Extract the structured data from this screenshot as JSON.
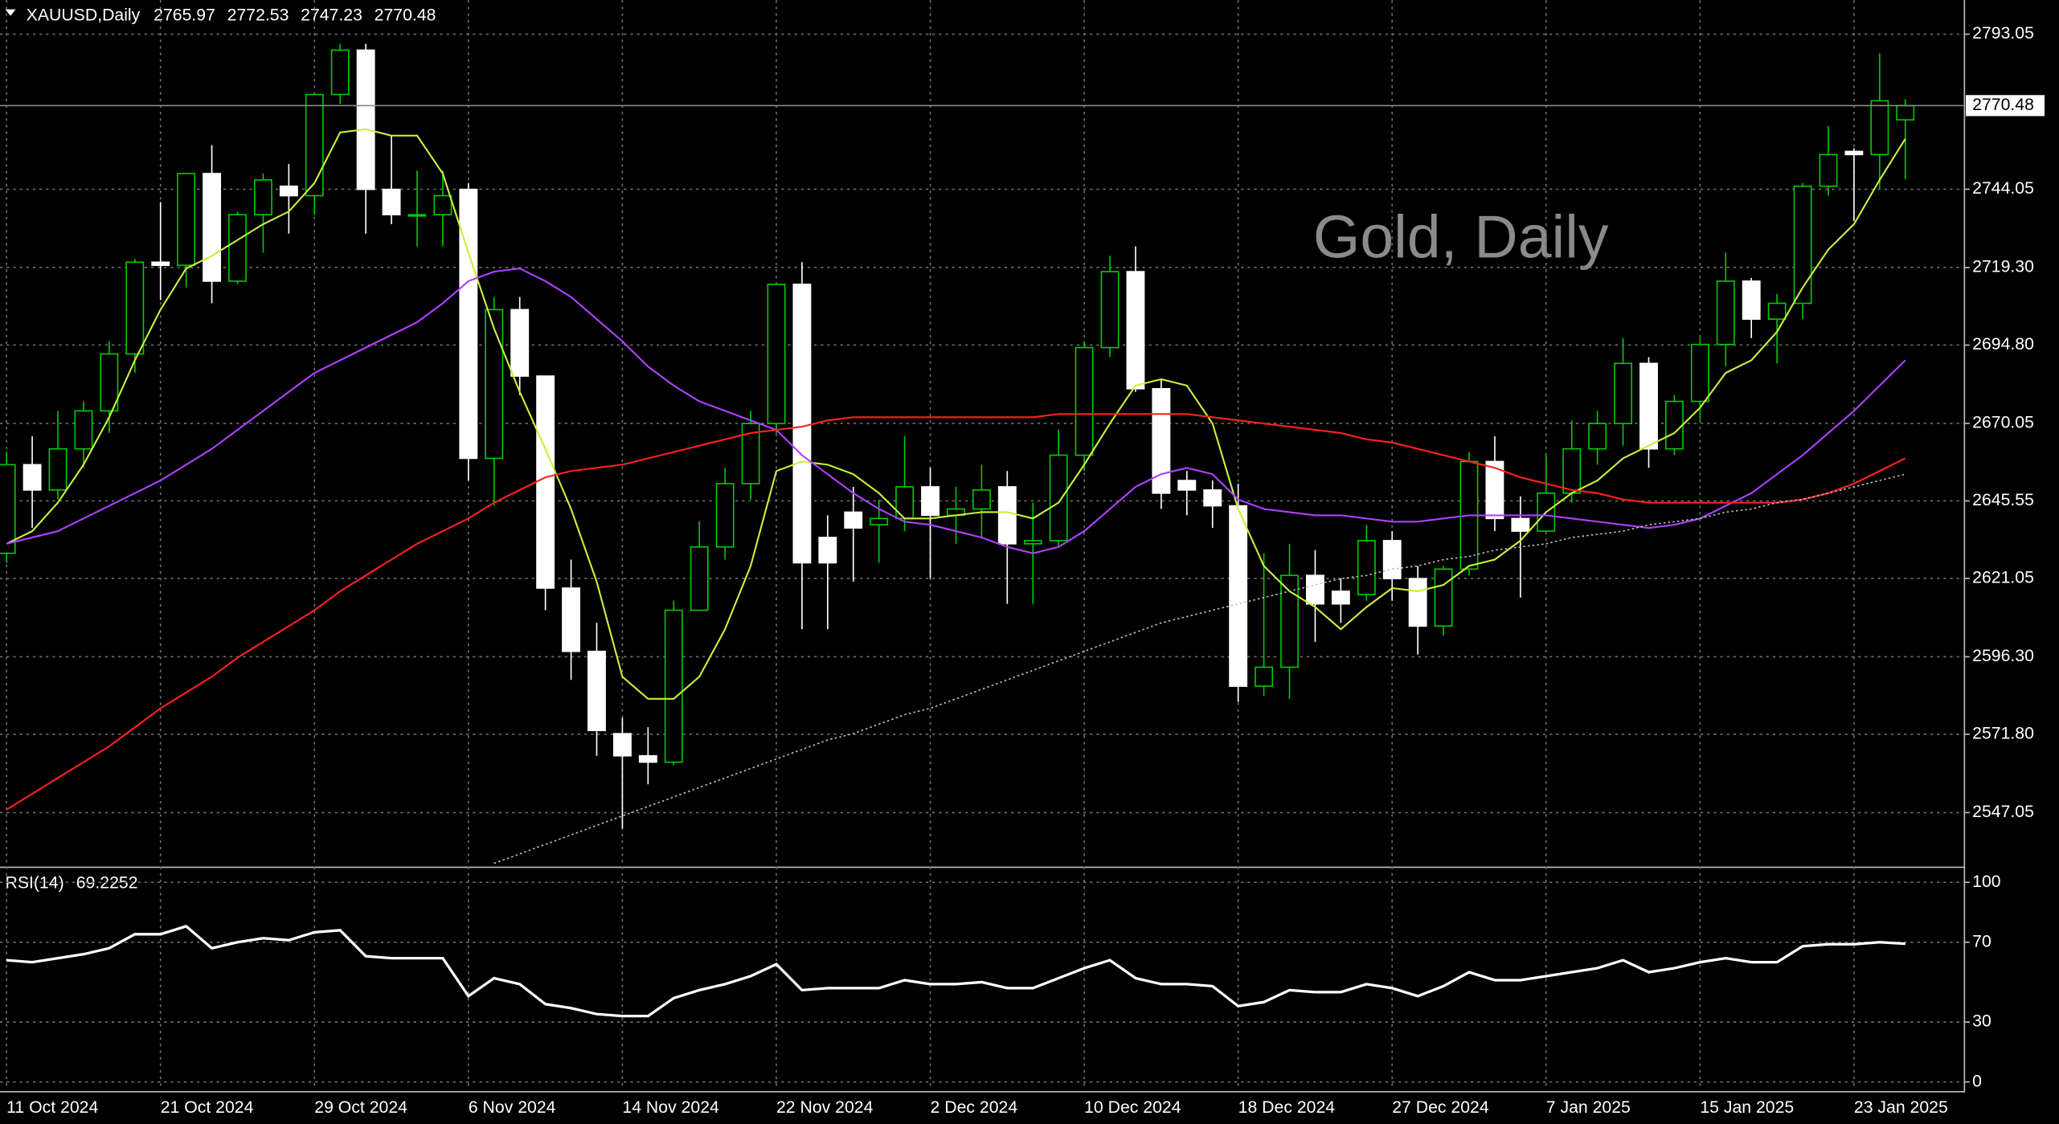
{
  "chart_data": [
    {
      "type": "candlestick",
      "title": "XAUUSD,Daily",
      "watermark": "Gold, Daily",
      "categories": [
        "11 Oct 2024",
        null,
        null,
        null,
        null,
        null,
        "21 Oct 2024",
        null,
        null,
        null,
        null,
        null,
        "29 Oct 2024",
        null,
        null,
        null,
        null,
        null,
        "6 Nov 2024",
        null,
        null,
        null,
        null,
        null,
        "14 Nov 2024",
        null,
        null,
        null,
        null,
        null,
        "22 Nov 2024",
        null,
        null,
        null,
        null,
        null,
        "2 Dec 2024",
        null,
        null,
        null,
        null,
        null,
        "10 Dec 2024",
        null,
        null,
        null,
        null,
        null,
        "18 Dec 2024",
        null,
        null,
        null,
        null,
        null,
        "27 Dec 2024",
        null,
        null,
        null,
        null,
        null,
        "7 Jan 2025",
        null,
        null,
        null,
        null,
        null,
        "15 Jan 2025",
        null,
        null,
        null,
        null,
        null,
        "23 Jan 2025",
        null,
        null
      ],
      "open": [
        2629,
        2657,
        2649,
        2662,
        2674,
        2692,
        2721,
        2720,
        2749,
        2715,
        2736,
        2745,
        2742,
        2774,
        2788,
        2744,
        2736,
        2736,
        2744,
        2659,
        2706,
        2685,
        2618,
        2598,
        2572,
        2565,
        2563,
        2611,
        2631,
        2651,
        2670,
        2714,
        2634,
        2642,
        2638,
        2640,
        2650,
        2641,
        2643,
        2650,
        2632,
        2633,
        2660,
        2694,
        2718,
        2681,
        2652,
        2649,
        2644,
        2587,
        2593,
        2622,
        2617,
        2616,
        2633,
        2621,
        2606,
        2624,
        2658,
        2640,
        2636,
        2648,
        2662,
        2670,
        2689,
        2662,
        2677,
        2695,
        2715,
        2703,
        2708,
        2745,
        2756,
        2755,
        2765.97
      ],
      "high": [
        2661,
        2666,
        2674,
        2677,
        2696,
        2722,
        2740,
        2749,
        2758,
        2737,
        2749,
        2752,
        2774,
        2790,
        2790,
        2761,
        2750,
        2750,
        2746,
        2710,
        2710,
        2685,
        2627,
        2607,
        2577,
        2574,
        2614,
        2639,
        2656,
        2674,
        2714,
        2721,
        2641,
        2650,
        2646,
        2666,
        2656,
        2650,
        2657,
        2655,
        2645,
        2668,
        2696,
        2723,
        2726,
        2684,
        2655,
        2652,
        2651,
        2629,
        2632,
        2630,
        2621,
        2638,
        2636,
        2625,
        2625,
        2661,
        2666,
        2647,
        2660,
        2671,
        2674,
        2697,
        2691,
        2679,
        2697,
        2724,
        2716,
        2711,
        2746,
        2764,
        2757,
        2787,
        2772.53
      ],
      "low": [
        2626,
        2637,
        2646,
        2656,
        2667,
        2686,
        2709,
        2713,
        2708,
        2714,
        2724,
        2730,
        2736,
        2771,
        2730,
        2733,
        2726,
        2726,
        2652,
        2644,
        2679,
        2611,
        2589,
        2565,
        2542,
        2556,
        2562,
        2611,
        2627,
        2646,
        2667,
        2605,
        2605,
        2620,
        2626,
        2636,
        2621,
        2632,
        2634,
        2613,
        2613,
        2631,
        2655,
        2691,
        2680,
        2643,
        2641,
        2637,
        2582,
        2584,
        2583,
        2601,
        2607,
        2614,
        2614,
        2597,
        2603,
        2622,
        2636,
        2615,
        2636,
        2645,
        2657,
        2663,
        2656,
        2660,
        2671,
        2688,
        2697,
        2689,
        2703,
        2742,
        2734,
        2744,
        2747.23
      ],
      "close": [
        2657,
        2649,
        2662,
        2674,
        2692,
        2721,
        2720,
        2749,
        2715,
        2736,
        2747,
        2742,
        2774,
        2788,
        2744,
        2736,
        2736,
        2742,
        2659,
        2706,
        2685,
        2618,
        2598,
        2573,
        2565,
        2563,
        2611,
        2631,
        2651,
        2670,
        2714,
        2626,
        2626,
        2637,
        2640,
        2650,
        2641,
        2643,
        2649,
        2632,
        2633,
        2660,
        2694,
        2718,
        2681,
        2648,
        2649,
        2644,
        2587,
        2593,
        2622,
        2613,
        2613,
        2633,
        2621,
        2606,
        2624,
        2658,
        2640,
        2636,
        2648,
        2662,
        2670,
        2689,
        2662,
        2677,
        2695,
        2715,
        2703,
        2708,
        2745,
        2755,
        2755,
        2772,
        2770.48
      ],
      "bull_color": "#00c800",
      "bear_color": "#ffffff",
      "series": [
        {
          "color": "#c8f03c",
          "style": "solid",
          "values": [
            2632,
            2636,
            2645,
            2657,
            2672,
            2690,
            2706,
            2719,
            2723,
            2728,
            2733,
            2737,
            2746,
            2762,
            2763,
            2761,
            2761,
            2749,
            2724,
            2700,
            2680,
            2662,
            2643,
            2620,
            2590,
            2583,
            2583,
            2590,
            2605,
            2625,
            2655,
            2658,
            2657,
            2654,
            2648,
            2640,
            2640,
            2641,
            2642,
            2642,
            2640,
            2645,
            2657,
            2670,
            2682,
            2684,
            2682,
            2670,
            2643,
            2625,
            2617,
            2612,
            2605,
            2612,
            2618,
            2617,
            2619,
            2625,
            2627,
            2633,
            2642,
            2648,
            2652,
            2659,
            2663,
            2667,
            2675,
            2686,
            2690,
            2699,
            2713,
            2725,
            2733,
            2747,
            2760
          ]
        },
        {
          "color": "#b040ff",
          "style": "solid",
          "values": [
            2632,
            2634,
            2636,
            2640,
            2644,
            2648,
            2652,
            2657,
            2662,
            2668,
            2674,
            2680,
            2686,
            2690,
            2694,
            2698,
            2702,
            2708,
            2715,
            2718,
            2719,
            2715,
            2710,
            2703,
            2696,
            2688,
            2682,
            2677,
            2674,
            2671,
            2668,
            2660,
            2654,
            2648,
            2643,
            2639,
            2638,
            2636,
            2634,
            2631,
            2629,
            2631,
            2636,
            2643,
            2650,
            2654,
            2656,
            2654,
            2646,
            2643,
            2642,
            2641,
            2641,
            2640,
            2639,
            2639,
            2640,
            2641,
            2641,
            2641,
            2641,
            2640,
            2639,
            2638,
            2637,
            2638,
            2640,
            2644,
            2648,
            2654,
            2660,
            2667,
            2674,
            2682,
            2690
          ]
        },
        {
          "color": "#ff2020",
          "style": "solid",
          "values": [
            2548,
            2553,
            2558,
            2563,
            2568,
            2574,
            2580,
            2585,
            2590,
            2596,
            2601,
            2606,
            2611,
            2617,
            2622,
            2627,
            2632,
            2636,
            2640,
            2645,
            2649,
            2653,
            2655,
            2656,
            2657,
            2659,
            2661,
            2663,
            2665,
            2667,
            2668,
            2669,
            2671,
            2672,
            2672,
            2672,
            2672,
            2672,
            2672,
            2672,
            2672,
            2673,
            2673,
            2673,
            2673,
            2673,
            2673,
            2672,
            2671,
            2670,
            2669,
            2668,
            2667,
            2665,
            2664,
            2662,
            2660,
            2658,
            2656,
            2653,
            2651,
            2649,
            2648,
            2646,
            2645,
            2645,
            2645,
            2645,
            2645,
            2645,
            2646,
            2648,
            2651,
            2655,
            2659
          ]
        },
        {
          "color": "#c0c0c0",
          "style": "dotted",
          "values": [
            null,
            null,
            null,
            null,
            null,
            null,
            null,
            null,
            null,
            null,
            null,
            null,
            null,
            null,
            null,
            null,
            null,
            null,
            null,
            2531,
            2534,
            2537,
            2540,
            2543,
            2546,
            2549,
            2552,
            2555,
            2558,
            2561,
            2564,
            2567,
            2570,
            2572,
            2575,
            2578,
            2580,
            2583,
            2586,
            2589,
            2592,
            2595,
            2598,
            2601,
            2604,
            2607,
            2609,
            2611,
            2613,
            2615,
            2617,
            2619,
            2621,
            2622,
            2624,
            2625,
            2627,
            2628,
            2630,
            2631,
            2632,
            2634,
            2635,
            2636,
            2638,
            2639,
            2640,
            2642,
            2643,
            2645,
            2646,
            2648,
            2650,
            2652,
            2654
          ]
        }
      ],
      "ylim": [
        2530.0,
        2803.8
      ],
      "yticks": [
        2793.05,
        2744.05,
        {
          "value": 2719.3,
          "label": "2719.30"
        },
        {
          "value": 2694.8,
          "label": "2694.80"
        },
        2670.05,
        2645.55,
        2621.05,
        {
          "value": 2596.3,
          "label": "2596.30"
        },
        {
          "value": 2571.8,
          "label": "2571.80"
        },
        2547.05
      ],
      "grid": true
    },
    {
      "type": "line",
      "title": "RSI(14)",
      "color": "#ffffff",
      "values": [
        61,
        60,
        62,
        64,
        67,
        74,
        74,
        78,
        67,
        70,
        72,
        71,
        75,
        76,
        63,
        62,
        62,
        62,
        43,
        52,
        49,
        39,
        37,
        34,
        33,
        33,
        42,
        46,
        49,
        53,
        59,
        46,
        47,
        47,
        47,
        51,
        49,
        49,
        50,
        47,
        47,
        52,
        57,
        61,
        52,
        49,
        49,
        48,
        38,
        40,
        46,
        45,
        45,
        49,
        47,
        43,
        48,
        55,
        51,
        51,
        53,
        55,
        57,
        61,
        55,
        57,
        60,
        62,
        60,
        60,
        68,
        69,
        69,
        70,
        69.2252
      ],
      "ylim": [
        -3.9,
        106.6
      ],
      "yticks": [
        100,
        70,
        30,
        0
      ],
      "grid": true
    }
  ]
}
